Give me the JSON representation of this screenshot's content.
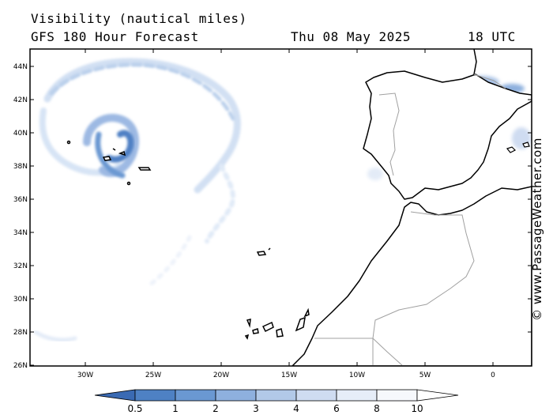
{
  "header": {
    "title": "Visibility (nautical miles)",
    "model": "GFS 180 Hour Forecast",
    "date": "Thu 08 May 2025",
    "time": "18 UTC"
  },
  "map": {
    "lat_labels": [
      "44N",
      "42N",
      "40N",
      "38N",
      "36N",
      "34N",
      "32N",
      "30N",
      "28N",
      "26N"
    ],
    "lon_labels": [
      "30W",
      "25W",
      "20W",
      "15W",
      "10W",
      "5W",
      "0"
    ],
    "land_color": "#ffffff",
    "coast_color": "#000000",
    "border_color": "#a0a0a0",
    "shade_colors": [
      "#3d72b8",
      "#5f8fcc",
      "#86abdb",
      "#b1c9e9",
      "#d8e5f5"
    ]
  },
  "colorbar": {
    "labels": [
      "0.5",
      "1",
      "2",
      "3",
      "4",
      "6",
      "8",
      "10"
    ],
    "colors": [
      "#3a6ab3",
      "#4e81c4",
      "#6a98d2",
      "#8eb0de",
      "#b2c9e8",
      "#cfdcf1",
      "#e6edf8",
      "#f6f8fc",
      "#ffffff"
    ]
  },
  "watermark": "© www.PassageWeather.com"
}
